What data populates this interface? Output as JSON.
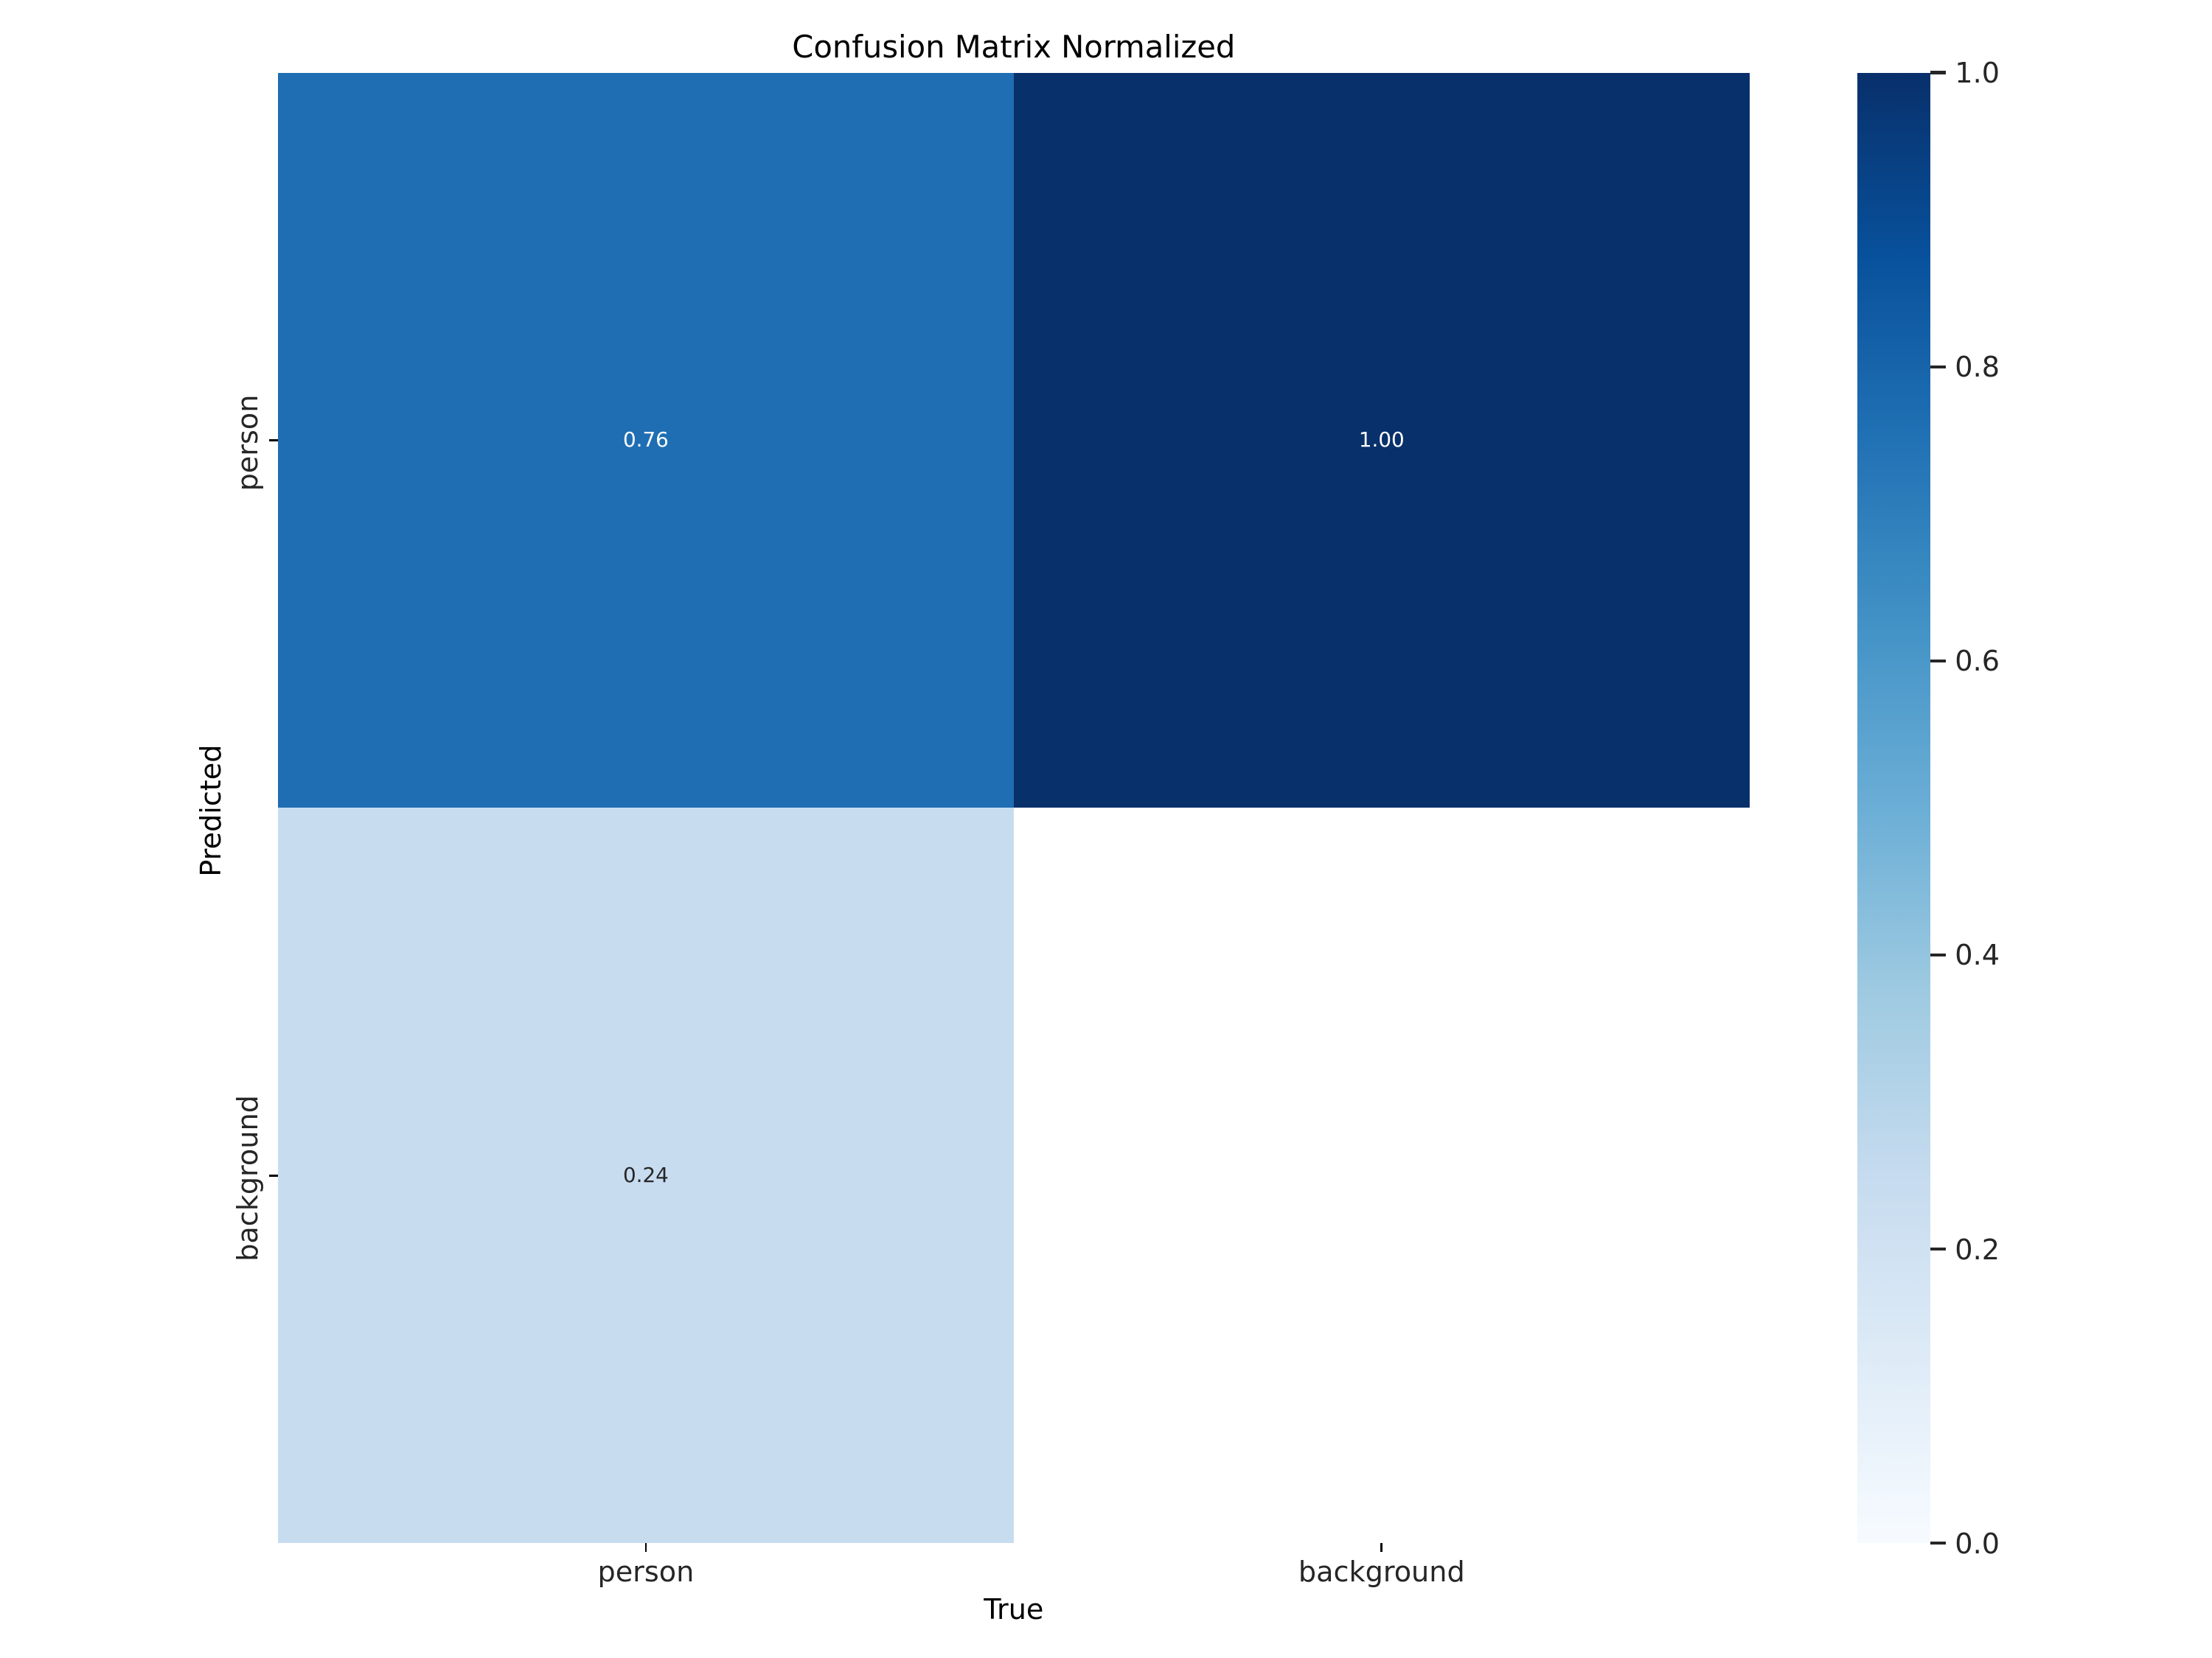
{
  "chart_data": {
    "type": "heatmap",
    "title": "Confusion Matrix Normalized",
    "xlabel": "True",
    "ylabel": "Predicted",
    "x_categories": [
      "person",
      "background"
    ],
    "y_categories": [
      "person",
      "background"
    ],
    "matrix": [
      [
        0.76,
        1.0
      ],
      [
        0.24,
        null
      ]
    ],
    "cells": [
      {
        "row": 0,
        "col": 0,
        "true_class": "person",
        "predicted_class": "person",
        "value": 0.76,
        "color": "#1F6EB3"
      },
      {
        "row": 0,
        "col": 1,
        "true_class": "background",
        "predicted_class": "person",
        "value": 1.0,
        "color": "#08306B"
      },
      {
        "row": 1,
        "col": 0,
        "true_class": "person",
        "predicted_class": "background",
        "value": 0.24,
        "color": "#C8DCF0"
      },
      {
        "row": 1,
        "col": 1,
        "true_class": "background",
        "predicted_class": "background",
        "value": null,
        "color": "#FFFFFF"
      }
    ],
    "annotations": [
      {
        "row": 0,
        "col": 0,
        "text": "0.76",
        "color": "#FFFFFF"
      },
      {
        "row": 0,
        "col": 1,
        "text": "1.00",
        "color": "#FFFFFF"
      },
      {
        "row": 1,
        "col": 0,
        "text": "0.24",
        "color": "#262626"
      }
    ],
    "colormap": {
      "name": "Blues",
      "stops": [
        {
          "pos": 0.0,
          "color": "#F7FBFF"
        },
        {
          "pos": 0.125,
          "color": "#DEEBF7"
        },
        {
          "pos": 0.25,
          "color": "#C6DBEF"
        },
        {
          "pos": 0.375,
          "color": "#9ECAE1"
        },
        {
          "pos": 0.5,
          "color": "#6BAED6"
        },
        {
          "pos": 0.625,
          "color": "#4292C6"
        },
        {
          "pos": 0.75,
          "color": "#2171B5"
        },
        {
          "pos": 0.875,
          "color": "#08519C"
        },
        {
          "pos": 1.0,
          "color": "#08306B"
        }
      ]
    },
    "colorbar": {
      "min": 0.0,
      "max": 1.0,
      "tick_labels": [
        "0.0",
        "0.2",
        "0.4",
        "0.6",
        "0.8",
        "1.0"
      ]
    },
    "vmin": 0.0,
    "vmax": 1.0,
    "grid": false,
    "legend": false
  }
}
